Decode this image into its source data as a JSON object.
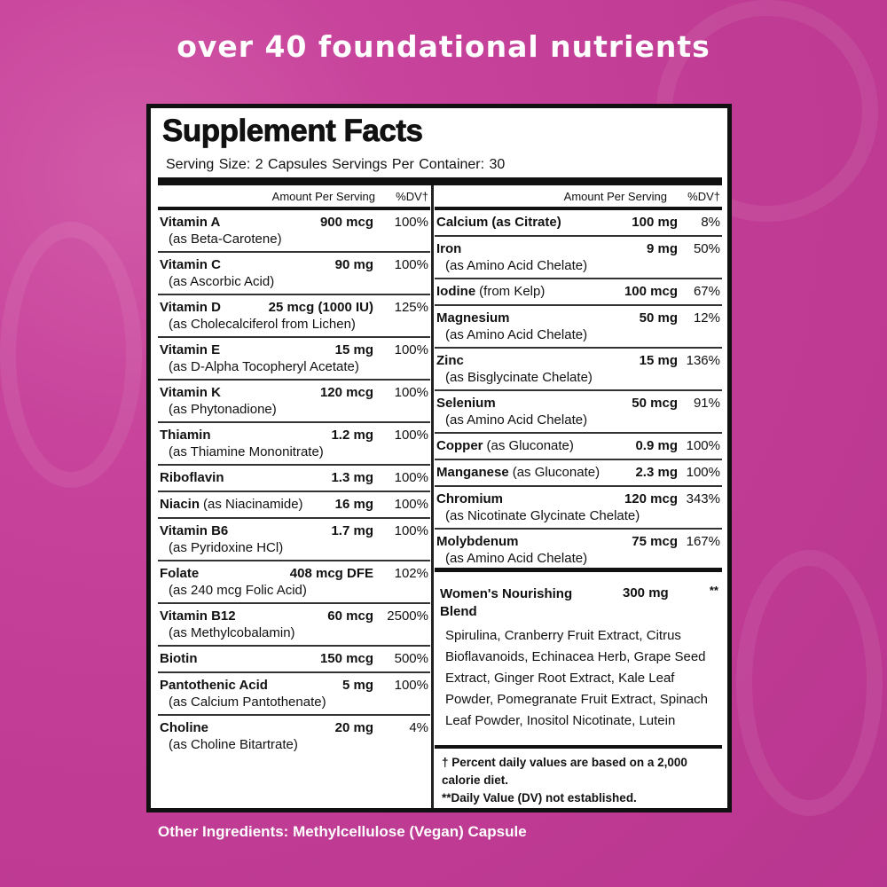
{
  "headline": "over 40 foundational nutrients",
  "panel": {
    "title": "Supplement Facts",
    "serving": "Serving Size: 2 Capsules  Servings Per Container: 30",
    "header_amount": "Amount Per Serving",
    "header_dv": "%DV†"
  },
  "left_rows": [
    {
      "name": "Vitamin A",
      "note": "",
      "amount": "900 mcg",
      "dv": "100%",
      "sub": "(as Beta-Carotene)"
    },
    {
      "name": "Vitamin C",
      "note": "",
      "amount": "90 mg",
      "dv": "100%",
      "sub": "(as Ascorbic Acid)"
    },
    {
      "name": "Vitamin D",
      "note": "",
      "amount": "25 mcg (1000 IU)",
      "dv": "125%",
      "sub": "(as Cholecalciferol from Lichen)"
    },
    {
      "name": "Vitamin E",
      "note": "",
      "amount": "15 mg",
      "dv": "100%",
      "sub": "(as D-Alpha Tocopheryl Acetate)"
    },
    {
      "name": "Vitamin K",
      "note": "",
      "amount": "120 mcg",
      "dv": "100%",
      "sub": "(as Phytonadione)"
    },
    {
      "name": "Thiamin",
      "note": "",
      "amount": "1.2 mg",
      "dv": "100%",
      "sub": "(as Thiamine Mononitrate)"
    },
    {
      "name": "Riboflavin",
      "note": "",
      "amount": "1.3 mg",
      "dv": "100%",
      "sub": ""
    },
    {
      "name": "Niacin",
      "note": "(as Niacinamide)",
      "amount": "16 mg",
      "dv": "100%",
      "sub": ""
    },
    {
      "name": "Vitamin B6",
      "note": "",
      "amount": "1.7 mg",
      "dv": "100%",
      "sub": "(as Pyridoxine HCl)"
    },
    {
      "name": "Folate",
      "note": "",
      "amount": "408 mcg DFE",
      "dv": "102%",
      "sub": "(as 240 mcg Folic Acid)"
    },
    {
      "name": "Vitamin B12",
      "note": "",
      "amount": "60 mcg",
      "dv": "2500%",
      "sub": "(as Methylcobalamin)"
    },
    {
      "name": "Biotin",
      "note": "",
      "amount": "150 mcg",
      "dv": "500%",
      "sub": ""
    },
    {
      "name": "Pantothenic Acid",
      "note": "",
      "amount": "5 mg",
      "dv": "100%",
      "sub": "(as Calcium Pantothenate)"
    },
    {
      "name": "Choline",
      "note": "",
      "amount": "20 mg",
      "dv": "4%",
      "sub": "(as Choline Bitartrate)"
    }
  ],
  "right_rows": [
    {
      "name": "Calcium",
      "note": "(as Citrate)",
      "note_bold": true,
      "amount": "100 mg",
      "dv": "8%",
      "sub": ""
    },
    {
      "name": "Iron",
      "note": "",
      "amount": "9 mg",
      "dv": "50%",
      "sub": "(as Amino Acid Chelate)"
    },
    {
      "name": "Iodine",
      "note": "(from Kelp)",
      "amount": "100 mcg",
      "dv": "67%",
      "sub": ""
    },
    {
      "name": "Magnesium",
      "note": "",
      "amount": "50 mg",
      "dv": "12%",
      "sub": "(as Amino Acid Chelate)"
    },
    {
      "name": "Zinc",
      "note": "",
      "amount": "15 mg",
      "dv": "136%",
      "sub": "(as Bisglycinate Chelate)"
    },
    {
      "name": "Selenium",
      "note": "",
      "amount": "50 mcg",
      "dv": "91%",
      "sub": "(as Amino Acid Chelate)"
    },
    {
      "name": "Copper",
      "note": "(as Gluconate)",
      "amount": "0.9 mg",
      "dv": "100%",
      "sub": ""
    },
    {
      "name": "Manganese",
      "note": "(as Gluconate)",
      "amount": "2.3 mg",
      "dv": "100%",
      "sub": ""
    },
    {
      "name": "Chromium",
      "note": "",
      "amount": "120 mcg",
      "dv": "343%",
      "sub": "(as Nicotinate Glycinate Chelate)"
    },
    {
      "name": "Molybdenum",
      "note": "",
      "amount": "75 mcg",
      "dv": "167%",
      "sub": "(as Amino Acid Chelate)"
    }
  ],
  "blend": {
    "name": "Women's Nourishing Blend",
    "amount": "300 mg",
    "dv": "**",
    "ingredients": "Spirulina, Cranberry Fruit Extract, Citrus Bioflavanoids, Echinacea Herb, Grape Seed Extract, Ginger Root Extract, Kale Leaf Powder, Pomegranate Fruit Extract, Spinach Leaf Powder, Inositol Nicotinate, Lutein"
  },
  "footnotes": {
    "dagger": "† Percent daily values are based on a 2,000 calorie diet.",
    "double_star": "**Daily Value (DV) not established."
  },
  "other_ingredients": "Other Ingredients: Methylcellulose (Vegan) Capsule",
  "colors": {
    "background": "#c4409a",
    "panel": "#ffffff",
    "ink": "#111111"
  }
}
